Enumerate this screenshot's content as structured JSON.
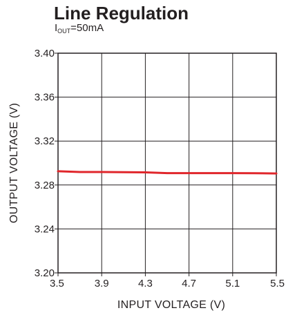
{
  "chart_data": {
    "type": "line",
    "title": "Line Regulation",
    "subtitle": {
      "prefix": "I",
      "subscript": "OUT",
      "suffix": "=50mA"
    },
    "xlabel": "INPUT VOLTAGE (V)",
    "ylabel": "OUTPUT VOLTAGE (V)",
    "xlim": [
      3.5,
      5.5
    ],
    "ylim": [
      3.2,
      3.4
    ],
    "xticks": [
      "3.5",
      "3.9",
      "4.3",
      "4.7",
      "5.1",
      "5.5"
    ],
    "yticks": [
      "3.20",
      "3.24",
      "3.28",
      "3.32",
      "3.36",
      "3.40"
    ],
    "grid": true,
    "series": [
      {
        "color": "#e0262b",
        "x": [
          3.5,
          3.7,
          3.9,
          4.1,
          4.3,
          4.5,
          4.7,
          4.9,
          5.1,
          5.3,
          5.5
        ],
        "y": [
          3.2925,
          3.2918,
          3.2918,
          3.2917,
          3.2915,
          3.2908,
          3.2908,
          3.2908,
          3.2908,
          3.2907,
          3.2905
        ]
      }
    ]
  }
}
